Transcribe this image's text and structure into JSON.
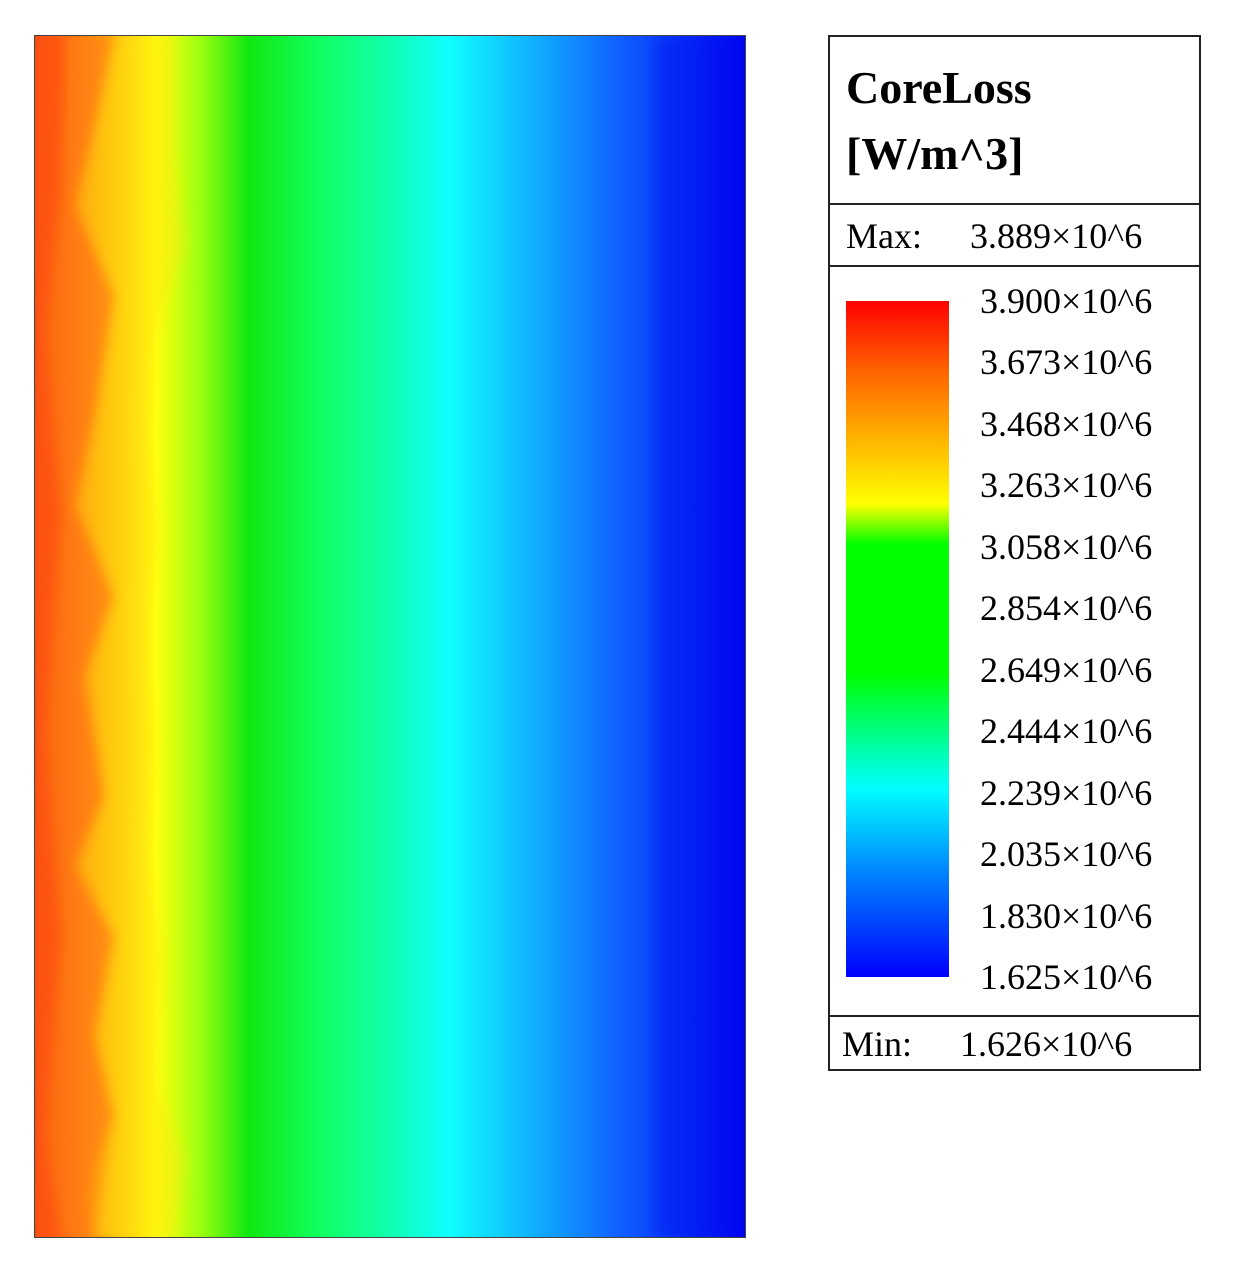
{
  "chart_data": {
    "type": "heatmap",
    "title": "CoreLoss",
    "unit": "[W/m^3]",
    "max_label": "Max:",
    "max_value": "3.889×10^6",
    "min_label": "Min:",
    "min_value": "1.626×10^6",
    "colorbar": {
      "range": [
        1625000,
        3900000
      ],
      "colors": [
        "#0000ff",
        "#00ffff",
        "#00ff00",
        "#ffff00",
        "#ff7f00",
        "#ff0000"
      ],
      "ticks": [
        {
          "value": 3900000,
          "label": "3.900×10^6"
        },
        {
          "value": 3673000,
          "label": "3.673×10^6"
        },
        {
          "value": 3468000,
          "label": "3.468×10^6"
        },
        {
          "value": 3263000,
          "label": "3.263×10^6"
        },
        {
          "value": 3058000,
          "label": "3.058×10^6"
        },
        {
          "value": 2854000,
          "label": "2.854×10^6"
        },
        {
          "value": 2649000,
          "label": "2.649×10^6"
        },
        {
          "value": 2444000,
          "label": "2.444×10^6"
        },
        {
          "value": 2239000,
          "label": "2.239×10^6"
        },
        {
          "value": 2035000,
          "label": "2.035×10^6"
        },
        {
          "value": 1830000,
          "label": "1.830×10^6"
        },
        {
          "value": 1625000,
          "label": "1.625×10^6"
        }
      ]
    },
    "field_profile": {
      "description_axis": "left-to-right",
      "position_fraction": [
        0.0,
        0.1,
        0.2,
        0.35,
        0.55,
        0.75,
        1.0
      ],
      "values": [
        3889000,
        3470000,
        3263000,
        2854000,
        2239000,
        1900000,
        1626000
      ]
    }
  }
}
